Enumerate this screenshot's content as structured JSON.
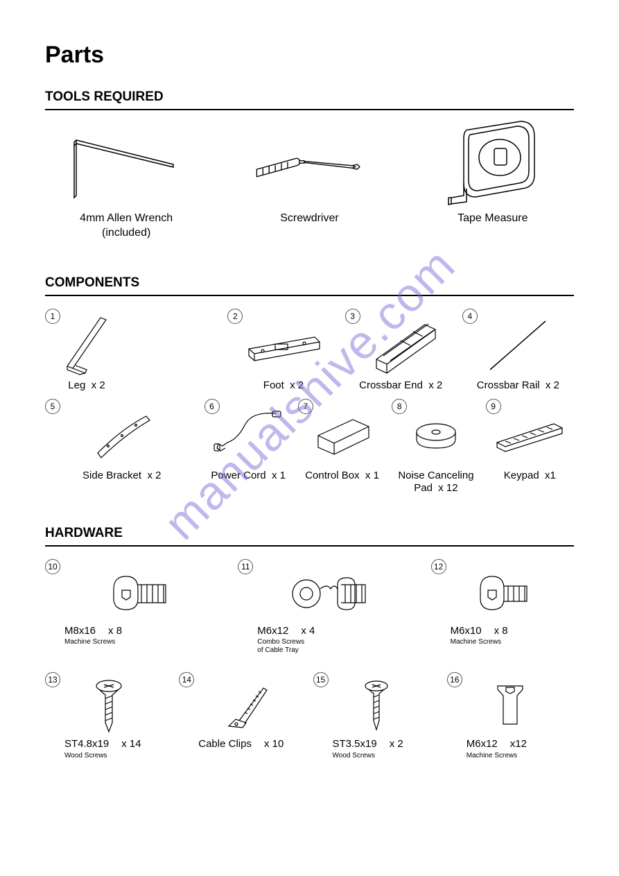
{
  "title": "Parts",
  "watermark": "manualshive.com",
  "sections": {
    "tools": {
      "heading": "TOOLS REQUIRED",
      "items": [
        {
          "name": "allen-wrench",
          "label": "4mm Allen Wrench\n(included)"
        },
        {
          "name": "screwdriver",
          "label": "Screwdriver"
        },
        {
          "name": "tape-measure",
          "label": "Tape Measure"
        }
      ]
    },
    "components": {
      "heading": "COMPONENTS",
      "items": [
        {
          "id": "1",
          "name": "leg",
          "label": "Leg",
          "qty": "x 2"
        },
        {
          "id": "2",
          "name": "foot",
          "label": "Foot",
          "qty": "x 2"
        },
        {
          "id": "3",
          "name": "crossbar-end",
          "label": "Crossbar End",
          "qty": "x 2"
        },
        {
          "id": "4",
          "name": "crossbar-rail",
          "label": "Crossbar Rail",
          "qty": "x 2"
        },
        {
          "id": "5",
          "name": "side-bracket",
          "label": "Side Bracket",
          "qty": "x 2"
        },
        {
          "id": "6",
          "name": "power-cord",
          "label": "Power Cord",
          "qty": "x 1"
        },
        {
          "id": "7",
          "name": "control-box",
          "label": "Control Box",
          "qty": "x 1"
        },
        {
          "id": "8",
          "name": "noise-pad",
          "label": "Noise Canceling\nPad",
          "qty": "x 12"
        },
        {
          "id": "9",
          "name": "keypad",
          "label": "Keypad",
          "qty": "x1"
        }
      ]
    },
    "hardware": {
      "heading": "HARDWARE",
      "row1": [
        {
          "id": "10",
          "name": "m8x16",
          "size": "M8x16",
          "qty": "x 8",
          "sub": "Machine Screws"
        },
        {
          "id": "11",
          "name": "m6x12-combo",
          "size": "M6x12",
          "qty": "x 4",
          "sub": "Combo Screws\nof Cable Tray"
        },
        {
          "id": "12",
          "name": "m6x10",
          "size": "M6x10",
          "qty": "x 8",
          "sub": "Machine Screws"
        }
      ],
      "row2": [
        {
          "id": "13",
          "name": "st48x19",
          "size": "ST4.8x19",
          "qty": "x 14",
          "sub": "Wood Screws"
        },
        {
          "id": "14",
          "name": "cable-clips",
          "size": "Cable Clips",
          "qty": "x 10",
          "sub": ""
        },
        {
          "id": "15",
          "name": "st35x19",
          "size": "ST3.5x19",
          "qty": "x 2",
          "sub": "Wood Screws"
        },
        {
          "id": "16",
          "name": "m6x12",
          "size": "M6x12",
          "qty": "x12",
          "sub": "Machine Screws"
        }
      ]
    }
  },
  "style": {
    "background": "#ffffff",
    "text_color": "#000000",
    "watermark_color": "#7a5fd9",
    "stroke": "#000000",
    "badge_border": "#555555",
    "title_fontsize": 34,
    "heading_fontsize": 19,
    "label_fontsize": 16,
    "comp_label_fontsize": 15,
    "sub_fontsize": 10
  }
}
